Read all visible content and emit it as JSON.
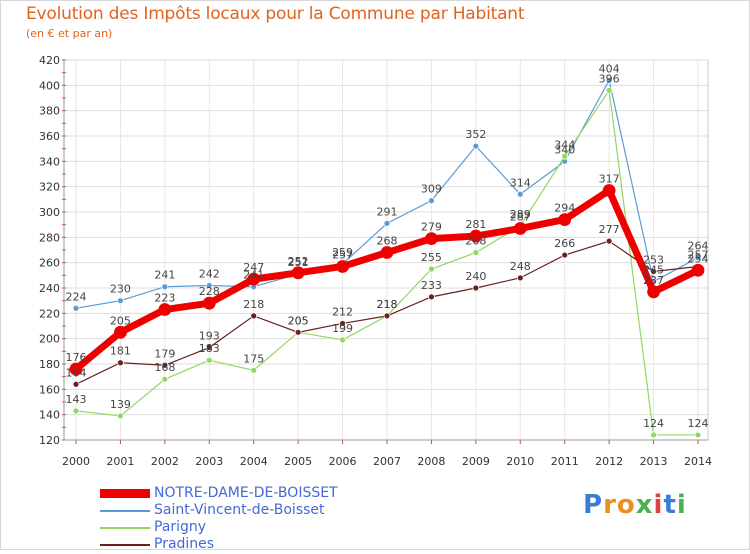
{
  "title": "Evolution des Impôts locaux pour la Commune par Habitant",
  "subtitle": "(en € et par an)",
  "logo": {
    "letters": [
      "P",
      "r",
      "o",
      "x",
      "i",
      "t",
      "i"
    ],
    "colors": [
      "#3a7bd5",
      "#e89020",
      "#e89020",
      "#4caf50",
      "#e04040",
      "#3a7bd5",
      "#4caf50"
    ]
  },
  "chart_data": {
    "type": "line",
    "x": [
      2000,
      2001,
      2002,
      2003,
      2004,
      2005,
      2006,
      2007,
      2008,
      2009,
      2010,
      2011,
      2012,
      2013,
      2014
    ],
    "ylim": [
      120,
      420
    ],
    "yticks": [
      120,
      140,
      160,
      180,
      200,
      220,
      240,
      260,
      280,
      300,
      320,
      340,
      360,
      380,
      400,
      420
    ],
    "grid": true,
    "legend_position": "bottom-left",
    "series": [
      {
        "name": "NOTRE-DAME-DE-BOISSET",
        "color": "#ee0000",
        "width": 7,
        "values": [
          176,
          205,
          223,
          228,
          247,
          252,
          257,
          268,
          279,
          281,
          287,
          294,
          317,
          237,
          254
        ]
      },
      {
        "name": "Saint-Vincent-de-Boisset",
        "color": "#5b9bd5",
        "width": 1,
        "values": [
          224,
          230,
          241,
          242,
          241,
          251,
          259,
          291,
          309,
          352,
          314,
          340,
          404,
          245,
          264
        ]
      },
      {
        "name": "Parigny",
        "color": "#90d860",
        "width": 1,
        "values": [
          143,
          139,
          168,
          183,
          175,
          205,
          199,
          218,
          255,
          268,
          289,
          344,
          396,
          124,
          124
        ]
      },
      {
        "name": "Pradines",
        "color": "#6b1f1f",
        "width": 1,
        "values": [
          164,
          181,
          179,
          193,
          218,
          205,
          212,
          218,
          233,
          240,
          248,
          266,
          277,
          253,
          257
        ]
      }
    ]
  }
}
